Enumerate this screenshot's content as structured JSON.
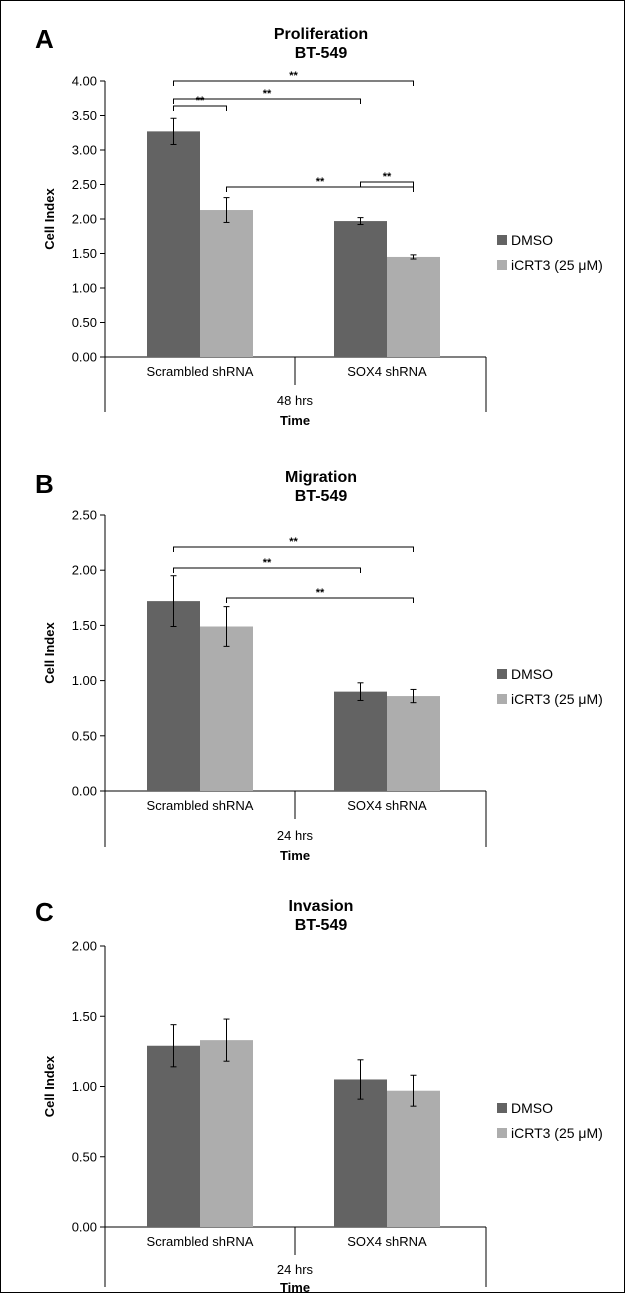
{
  "chart_data": [
    {
      "type": "bar",
      "panel": "A",
      "title": [
        "Proliferation",
        "BT-549"
      ],
      "ylabel": "Cell Index",
      "xlabel_group": "48 hrs",
      "xlabel": "Time",
      "ylim": [
        0,
        4
      ],
      "yticks": [
        "0.00",
        "0.50",
        "1.00",
        "1.50",
        "2.00",
        "2.50",
        "3.00",
        "3.50",
        "4.00"
      ],
      "categories": [
        "Scrambled shRNA",
        "SOX4 shRNA"
      ],
      "series": [
        {
          "name": "DMSO",
          "color": "#636363",
          "values": [
            3.27,
            1.97
          ],
          "errors": [
            0.19,
            0.05
          ]
        },
        {
          "name": "iCRT3 (25 μM)",
          "color": "#adadad",
          "values": [
            2.13,
            1.45
          ],
          "errors": [
            0.18,
            0.03
          ]
        }
      ],
      "significance": [
        {
          "label": "**",
          "from": [
            0,
            0
          ],
          "to": [
            0,
            1
          ]
        },
        {
          "label": "**",
          "from": [
            0,
            0
          ],
          "to": [
            1,
            0
          ]
        },
        {
          "label": "**",
          "from": [
            0,
            0
          ],
          "to": [
            1,
            1
          ]
        },
        {
          "label": "**",
          "from": [
            0,
            1
          ],
          "to": [
            1,
            1
          ]
        },
        {
          "label": "**",
          "from": [
            1,
            0
          ],
          "to": [
            1,
            1
          ]
        }
      ]
    },
    {
      "type": "bar",
      "panel": "B",
      "title": [
        "Migration",
        "BT-549"
      ],
      "ylabel": "Cell Index",
      "xlabel_group": "24 hrs",
      "xlabel": "Time",
      "ylim": [
        0,
        2.5
      ],
      "yticks": [
        "0.00",
        "0.50",
        "1.00",
        "1.50",
        "2.00",
        "2.50"
      ],
      "categories": [
        "Scrambled shRNA",
        "SOX4 shRNA"
      ],
      "series": [
        {
          "name": "DMSO",
          "color": "#636363",
          "values": [
            1.72,
            0.9
          ],
          "errors": [
            0.23,
            0.08
          ]
        },
        {
          "name": "iCRT3 (25 μM)",
          "color": "#adadad",
          "values": [
            1.49,
            0.86
          ],
          "errors": [
            0.18,
            0.06
          ]
        }
      ],
      "significance": [
        {
          "label": "**",
          "from": [
            0,
            0
          ],
          "to": [
            1,
            1
          ]
        },
        {
          "label": "**",
          "from": [
            0,
            0
          ],
          "to": [
            1,
            0
          ]
        },
        {
          "label": "**",
          "from": [
            0,
            1
          ],
          "to": [
            1,
            1
          ]
        }
      ]
    },
    {
      "type": "bar",
      "panel": "C",
      "title": [
        "Invasion",
        "BT-549"
      ],
      "ylabel": "Cell Index",
      "xlabel_group": "24 hrs",
      "xlabel": "Time",
      "ylim": [
        0,
        2
      ],
      "yticks": [
        "0.00",
        "0.50",
        "1.00",
        "1.50",
        "2.00"
      ],
      "categories": [
        "Scrambled shRNA",
        "SOX4 shRNA"
      ],
      "series": [
        {
          "name": "DMSO",
          "color": "#636363",
          "values": [
            1.29,
            1.05
          ],
          "errors": [
            0.15,
            0.14
          ]
        },
        {
          "name": "iCRT3 (25 μM)",
          "color": "#adadad",
          "values": [
            1.33,
            0.97
          ],
          "errors": [
            0.15,
            0.11
          ]
        }
      ],
      "significance": []
    }
  ]
}
